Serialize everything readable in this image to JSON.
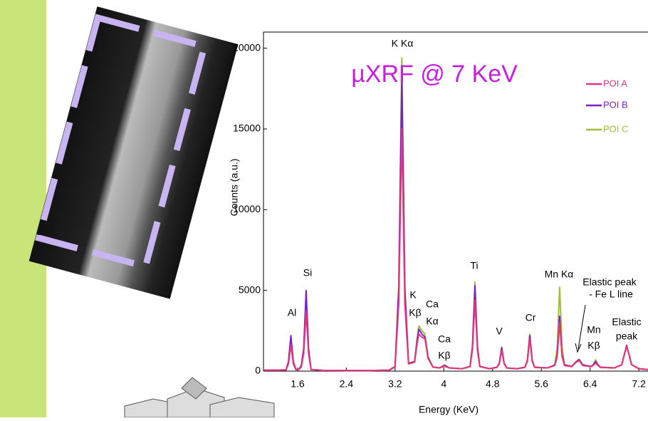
{
  "chart_data": {
    "type": "line",
    "title": "µXRF @ 7 KeV",
    "x_label": "Energy (KeV)",
    "y_label": "Counts (a.u.)",
    "x": [
      1.04,
      1.3,
      1.41,
      1.45,
      1.49,
      1.53,
      1.57,
      1.62,
      1.66,
      1.7,
      1.74,
      1.78,
      1.82,
      2.0,
      2.4,
      2.8,
      3.1,
      3.2,
      3.26,
      3.31,
      3.36,
      3.42,
      3.52,
      3.56,
      3.59,
      3.64,
      3.69,
      3.74,
      3.82,
      3.93,
      4.01,
      4.09,
      4.3,
      4.43,
      4.47,
      4.51,
      4.55,
      4.59,
      4.75,
      4.87,
      4.91,
      4.95,
      4.99,
      5.03,
      5.2,
      5.33,
      5.37,
      5.41,
      5.45,
      5.49,
      5.7,
      5.82,
      5.86,
      5.9,
      5.94,
      5.98,
      6.1,
      6.17,
      6.22,
      6.28,
      6.41,
      6.45,
      6.49,
      6.53,
      6.57,
      6.8,
      6.92,
      6.96,
      7.0,
      7.04,
      7.08,
      7.2,
      7.35
    ],
    "series": [
      {
        "name": "POI A",
        "color": "#e8347a",
        "values": [
          60,
          60,
          80,
          450,
          1650,
          450,
          100,
          100,
          250,
          1100,
          3700,
          1100,
          100,
          50,
          40,
          40,
          60,
          250,
          4200,
          15000,
          4200,
          450,
          550,
          1700,
          2300,
          2100,
          2000,
          800,
          250,
          200,
          300,
          200,
          150,
          280,
          1300,
          4400,
          1300,
          280,
          150,
          230,
          450,
          1300,
          450,
          200,
          150,
          230,
          600,
          2000,
          600,
          230,
          200,
          350,
          900,
          3000,
          900,
          350,
          280,
          550,
          650,
          350,
          280,
          350,
          500,
          350,
          230,
          200,
          400,
          1000,
          1550,
          1000,
          400,
          150,
          100
        ]
      },
      {
        "name": "POI B",
        "color": "#7a22c8",
        "values": [
          60,
          60,
          80,
          600,
          2200,
          600,
          100,
          100,
          350,
          1400,
          5000,
          1400,
          100,
          50,
          40,
          40,
          60,
          280,
          5100,
          18300,
          5100,
          480,
          580,
          1900,
          2600,
          2300,
          2100,
          850,
          250,
          200,
          350,
          200,
          150,
          290,
          1500,
          5300,
          1500,
          290,
          150,
          240,
          480,
          1450,
          480,
          200,
          150,
          240,
          650,
          2200,
          650,
          240,
          200,
          380,
          1000,
          3400,
          1000,
          380,
          290,
          580,
          700,
          380,
          290,
          380,
          600,
          380,
          240,
          200,
          400,
          1000,
          1600,
          1000,
          400,
          150,
          100
        ]
      },
      {
        "name": "POI C",
        "color": "#9cc03a",
        "values": [
          60,
          60,
          80,
          500,
          1700,
          500,
          100,
          100,
          300,
          1300,
          4500,
          1300,
          100,
          50,
          40,
          40,
          60,
          300,
          5400,
          19400,
          5400,
          500,
          600,
          2000,
          2800,
          2500,
          2300,
          900,
          250,
          200,
          400,
          200,
          150,
          300,
          1600,
          5500,
          1600,
          300,
          150,
          250,
          500,
          1500,
          500,
          200,
          150,
          250,
          700,
          2300,
          700,
          250,
          200,
          400,
          1500,
          5200,
          1500,
          400,
          300,
          600,
          750,
          400,
          300,
          400,
          700,
          400,
          250,
          200,
          400,
          1000,
          1600,
          1000,
          400,
          150,
          100
        ]
      }
    ],
    "xlim": [
      1.04,
      7.35
    ],
    "ylim": [
      0,
      21000
    ],
    "xticks": [
      1.6,
      2.4,
      3.2,
      4,
      4.8,
      5.6,
      6.4,
      7.2
    ],
    "yticks": [
      0,
      5000,
      10000,
      15000,
      20000
    ],
    "legend": "upper right",
    "annotations": [
      "K Kα",
      "Si",
      "Al",
      "K",
      "Kβ",
      "Ca",
      "Kα",
      "Ca",
      "Kβ",
      "Ti",
      "V",
      "Cr",
      "Mn Kα",
      "Elastic peak",
      "- Fe L line",
      "Mn",
      "Kβ",
      "Elastic",
      "peak"
    ]
  }
}
